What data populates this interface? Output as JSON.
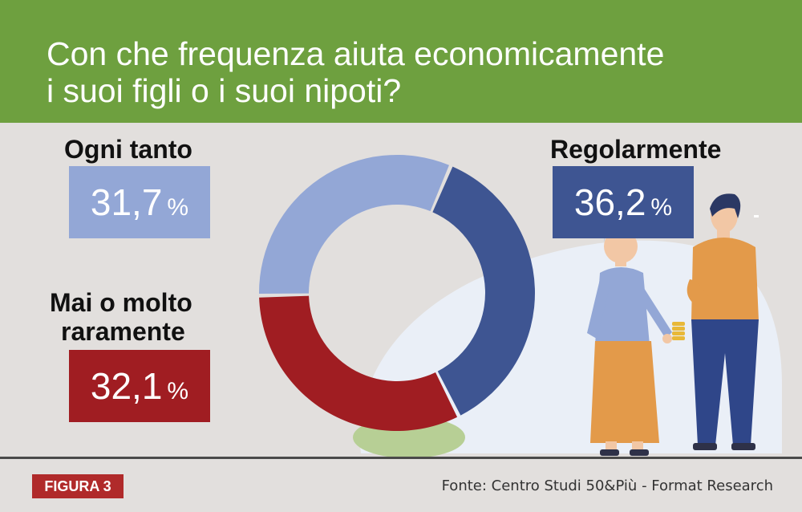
{
  "title_lines": [
    "Con che frequenza aiuta economicamente",
    "i suoi figli o i suoi nipoti?"
  ],
  "colors": {
    "header_bg": "#6ea03f",
    "background": "#e2dfdd",
    "regolarmente": "#3e5592",
    "ogni_tanto": "#93a7d6",
    "mai": "#a01d22",
    "figure_badge": "#b02a2a"
  },
  "labels": {
    "ogni_tanto": "Ogni tanto",
    "mai_line1": "Mai o molto",
    "mai_line2": "raramente",
    "regolarmente": "Regolarmente"
  },
  "values": {
    "ogni_tanto": "31,7",
    "mai": "32,1",
    "regolarmente": "36,2",
    "percent_sign": "%"
  },
  "chart_data": {
    "type": "pie",
    "variant": "donut",
    "title": "Con che frequenza aiuta economicamente i suoi figli o i suoi nipoti?",
    "categories": [
      "Regolarmente",
      "Mai o molto raramente",
      "Ogni tanto"
    ],
    "values": [
      36.2,
      32.1,
      31.7
    ],
    "unit": "%",
    "colors": [
      "#3e5592",
      "#a01d22",
      "#93a7d6"
    ]
  },
  "footer": {
    "figure_label": "FIGURA 3",
    "source": "Fonte: Centro Studi 50&Più - Format Research"
  }
}
